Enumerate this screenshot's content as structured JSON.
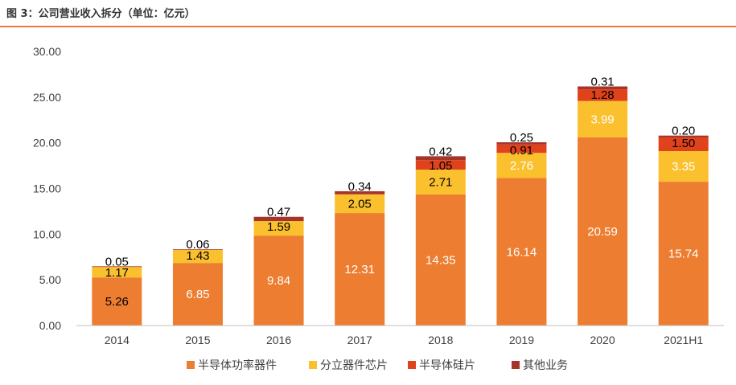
{
  "figure_title": "图 3：公司营业收入拆分（单位：亿元）",
  "colors": {
    "series": [
      "#ED7D31",
      "#FBC02D",
      "#E0421B",
      "#A5352B"
    ],
    "rule": "#ED7D31",
    "axis": "#BFBFBF",
    "text": "#404040"
  },
  "chart_data": {
    "type": "bar",
    "stacked": true,
    "title": "",
    "xlabel": "",
    "ylabel": "",
    "categories": [
      "2014",
      "2015",
      "2016",
      "2017",
      "2018",
      "2019",
      "2020",
      "2021H1"
    ],
    "ylim": [
      0,
      30
    ],
    "yticks": [
      "0.00",
      "5.00",
      "10.00",
      "15.00",
      "20.00",
      "25.00",
      "30.00"
    ],
    "grid": false,
    "legend_position": "bottom",
    "series": [
      {
        "name": "半导体功率器件",
        "values": [
          5.26,
          6.85,
          9.84,
          12.31,
          14.35,
          16.14,
          20.59,
          15.74
        ],
        "labels": [
          "5.26",
          "6.85",
          "9.84",
          "12.31",
          "14.35",
          "16.14",
          "20.59",
          "15.74"
        ]
      },
      {
        "name": "分立器件芯片",
        "values": [
          1.17,
          1.43,
          1.59,
          2.05,
          2.71,
          2.76,
          3.99,
          3.35
        ],
        "labels": [
          "1.17",
          "1.43",
          "1.59",
          "2.05",
          "2.71",
          "2.76",
          "3.99",
          "3.35"
        ]
      },
      {
        "name": "半导体硅片",
        "values": [
          0,
          0,
          0,
          0,
          1.05,
          0.91,
          1.28,
          1.5
        ],
        "labels": [
          "",
          "",
          "",
          "",
          "1.05",
          "0.91",
          "1.28",
          "1.50"
        ]
      },
      {
        "name": "其他业务",
        "values": [
          0.05,
          0.06,
          0.47,
          0.34,
          0.42,
          0.25,
          0.31,
          0.2
        ],
        "labels": [
          "0.05",
          "0.06",
          "0.47",
          "0.34",
          "0.42",
          "0.25",
          "0.31",
          "0.20"
        ]
      }
    ]
  }
}
